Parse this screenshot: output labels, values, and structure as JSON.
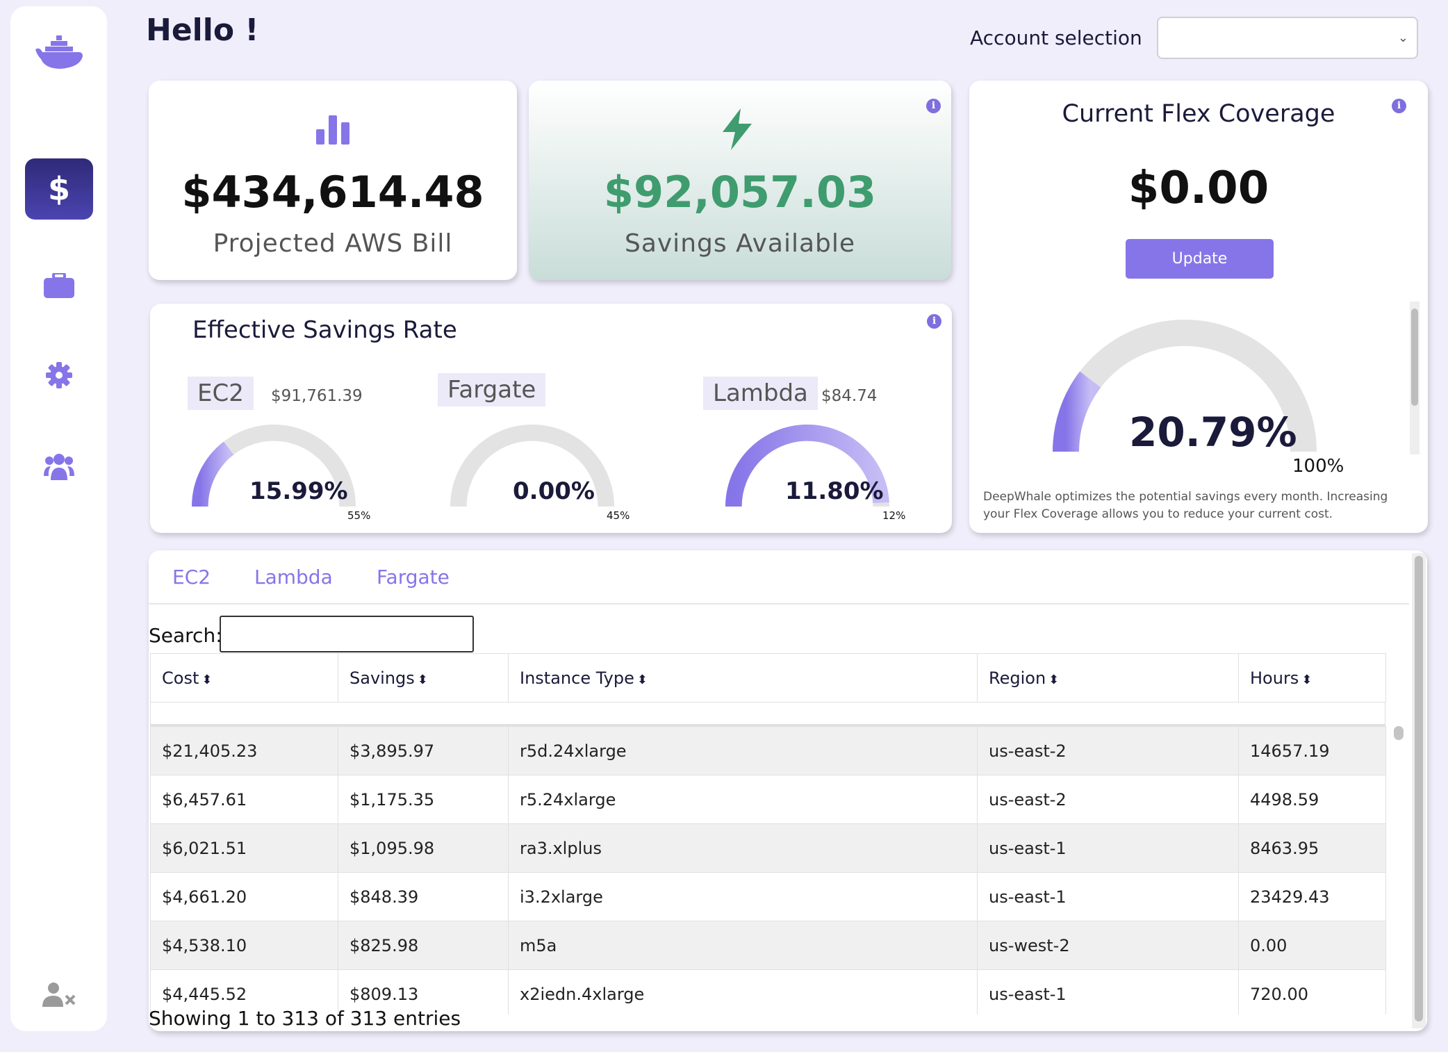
{
  "header": {
    "greeting": "Hello !",
    "account_label": "Account selection",
    "account_value": ""
  },
  "sidebar": {
    "items": [
      {
        "icon": "whale-logo-icon"
      },
      {
        "icon": "dollar-icon",
        "label": "$",
        "active": true
      },
      {
        "icon": "briefcase-icon"
      },
      {
        "icon": "gear-icon"
      },
      {
        "icon": "users-icon"
      },
      {
        "icon": "user-remove-icon"
      }
    ]
  },
  "cards": {
    "bill": {
      "value": "$434,614.48",
      "caption": "Projected AWS Bill",
      "icon": "bar-chart-icon"
    },
    "savings": {
      "value": "$92,057.03",
      "caption": "Savings Available",
      "icon": "lightning-icon",
      "color": "#3f9c6e"
    },
    "flex": {
      "title": "Current Flex Coverage",
      "value": "$0.00",
      "button": "Update",
      "gauge_pct": "20.79%",
      "gauge_value": 0.2079,
      "gauge_max": "100%",
      "note": "DeepWhale optimizes the potential savings every month. Increasing your Flex Coverage allows you to  reduce your current cost."
    },
    "esr": {
      "title": "Effective Savings Rate",
      "gauges": [
        {
          "label": "EC2",
          "amount": "$91,761.39",
          "pct": "15.99%",
          "value": 0.1599,
          "max_label": "55%",
          "max": 0.55
        },
        {
          "label": "Fargate",
          "amount": "",
          "pct": "0.00%",
          "value": 0.0,
          "max_label": "45%",
          "max": 0.45
        },
        {
          "label": "Lambda",
          "amount": "$84.74",
          "pct": "11.80%",
          "value": 0.118,
          "max_label": "12%",
          "max": 0.12
        }
      ]
    }
  },
  "table": {
    "tabs": [
      "EC2",
      "Lambda",
      "Fargate"
    ],
    "search_label": "Search:",
    "columns": [
      "Cost",
      "Savings",
      "Instance Type",
      "Region",
      "Hours"
    ],
    "rows": [
      [
        "$21,405.23",
        "$3,895.97",
        "r5d.24xlarge",
        "us-east-2",
        "14657.19"
      ],
      [
        "$6,457.61",
        "$1,175.35",
        "r5.24xlarge",
        "us-east-2",
        "4498.59"
      ],
      [
        "$6,021.51",
        "$1,095.98",
        "ra3.xlplus",
        "us-east-1",
        "8463.95"
      ],
      [
        "$4,661.20",
        "$848.39",
        "i3.2xlarge",
        "us-east-1",
        "23429.43"
      ],
      [
        "$4,538.10",
        "$825.98",
        "m5a",
        "us-west-2",
        "0.00"
      ],
      [
        "$4,445.52",
        "$809.13",
        "x2iedn.4xlarge",
        "us-east-1",
        "720.00"
      ]
    ],
    "footer": "Showing 1 to 313 of 313 entries"
  },
  "colors": {
    "accent": "#8675e8",
    "sidebar_active": "#2f2a78",
    "savings_green": "#3f9c6e",
    "gauge_track": "#e3e3e3"
  }
}
